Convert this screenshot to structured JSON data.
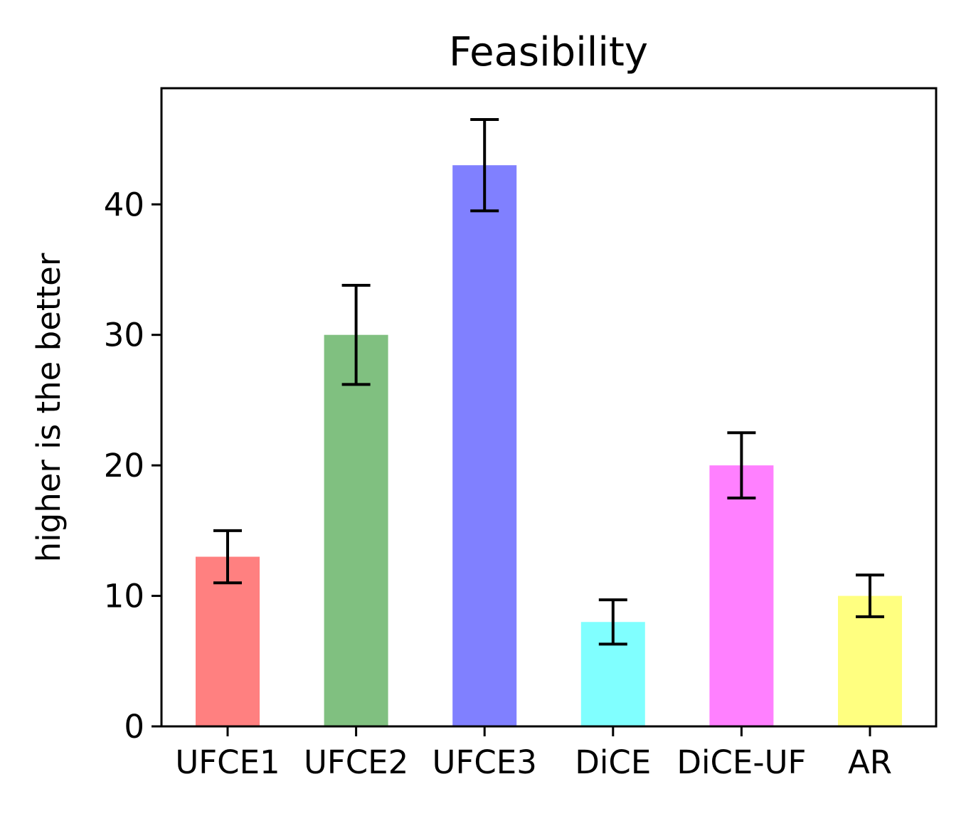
{
  "chart_data": {
    "type": "bar",
    "title": "Feasibility",
    "xlabel": "",
    "ylabel": "higher is the better",
    "categories": [
      "UFCE1",
      "UFCE2",
      "UFCE3",
      "DiCE",
      "DiCE-UF",
      "AR"
    ],
    "values": [
      13,
      30,
      43,
      8,
      20,
      10
    ],
    "errors": [
      2.0,
      3.8,
      3.5,
      1.7,
      2.5,
      1.6
    ],
    "colors": [
      "#ff8080",
      "#80c080",
      "#8080ff",
      "#80ffff",
      "#ff80ff",
      "#ffff80"
    ],
    "yticks": [
      0,
      10,
      20,
      30,
      40
    ],
    "ylim": [
      0,
      48.9
    ],
    "grid": false,
    "legend": "none"
  }
}
